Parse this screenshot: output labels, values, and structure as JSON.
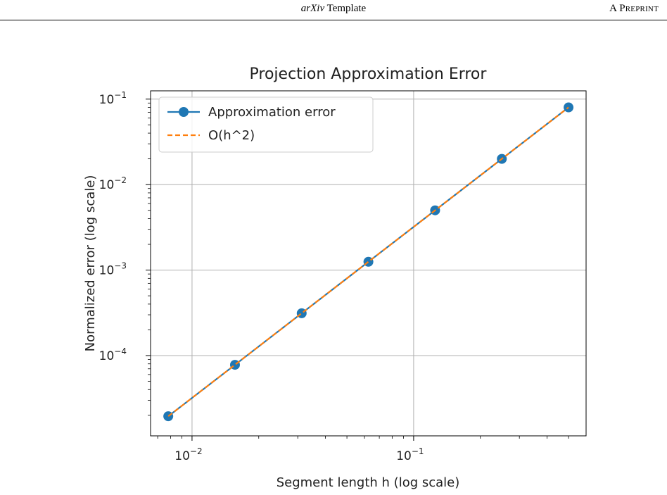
{
  "header": {
    "journal_italic": "arXiv",
    "journal_rest": " Template",
    "preprint": "A Preprint"
  },
  "chart_data": {
    "type": "line",
    "title": "Projection Approximation Error",
    "xlabel": "Segment length h (log scale)",
    "ylabel": "Normalized error (log scale)",
    "xscale": "log",
    "yscale": "log",
    "xlim": [
      0.0065,
      0.6
    ],
    "ylim": [
      1.15e-05,
      0.125
    ],
    "grid": true,
    "legend": "top-left",
    "x_ticks": [
      {
        "value": 0.01,
        "base": "10",
        "exp": "−2"
      },
      {
        "value": 0.1,
        "base": "10",
        "exp": "−1"
      }
    ],
    "y_ticks": [
      {
        "value": 0.1,
        "base": "10",
        "exp": "−1"
      },
      {
        "value": 0.01,
        "base": "10",
        "exp": "−2"
      },
      {
        "value": 0.001,
        "base": "10",
        "exp": "−3"
      },
      {
        "value": 0.0001,
        "base": "10",
        "exp": "−4"
      }
    ],
    "x": [
      0.0078125,
      0.015625,
      0.03125,
      0.0625,
      0.125,
      0.25,
      0.5
    ],
    "series": [
      {
        "name": "Approximation error",
        "style": "solid-marker",
        "color": "#1f77b4",
        "values": [
          1.95e-05,
          7.8e-05,
          0.0003125,
          0.00125,
          0.005,
          0.02,
          0.08
        ]
      },
      {
        "name": "O(h^2)",
        "style": "dashed",
        "color": "#ff7f0e",
        "values": [
          1.95e-05,
          7.8e-05,
          0.0003125,
          0.00125,
          0.005,
          0.02,
          0.08
        ]
      }
    ]
  }
}
